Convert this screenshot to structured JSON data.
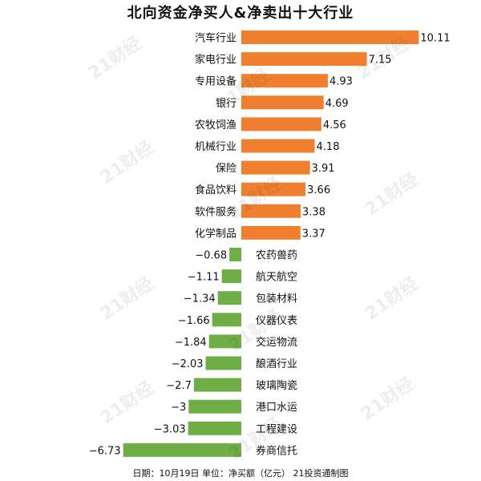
{
  "chart_data": {
    "type": "bar",
    "orientation": "horizontal",
    "title": "北向资金净买人&净卖出十大行业",
    "categories": [
      "汽车行业",
      "家电行业",
      "专用设备",
      "银行",
      "农牧饲渔",
      "机械行业",
      "保险",
      "食品饮料",
      "软件服务",
      "化学制品",
      "农药兽药",
      "航天航空",
      "包装材料",
      "仪器仪表",
      "交运物流",
      "酿酒行业",
      "玻璃陶瓷",
      "港口水运",
      "工程建设",
      "券商信托"
    ],
    "values": [
      10.11,
      7.15,
      4.93,
      4.69,
      4.56,
      4.18,
      3.91,
      3.66,
      3.38,
      3.37,
      -0.68,
      -1.11,
      -1.34,
      -1.66,
      -1.84,
      -2.03,
      -2.7,
      -3,
      -3.03,
      -6.73
    ],
    "value_labels": [
      "10.11",
      "7.15",
      "4.93",
      "4.69",
      "4.56",
      "4.18",
      "3.91",
      "3.66",
      "3.38",
      "3.37",
      "−0.68",
      "−1.11",
      "−1.34",
      "−1.66",
      "−1.84",
      "−2.03",
      "−2.7",
      "−3",
      "−3.03",
      "−6.73"
    ],
    "positive_color": "#f08030",
    "negative_color": "#6fae45",
    "xlabel": "",
    "ylabel": ""
  },
  "footnote": "日期：10月19日 单位：净买额（亿元） 21投资通制图",
  "watermark": "21财经"
}
